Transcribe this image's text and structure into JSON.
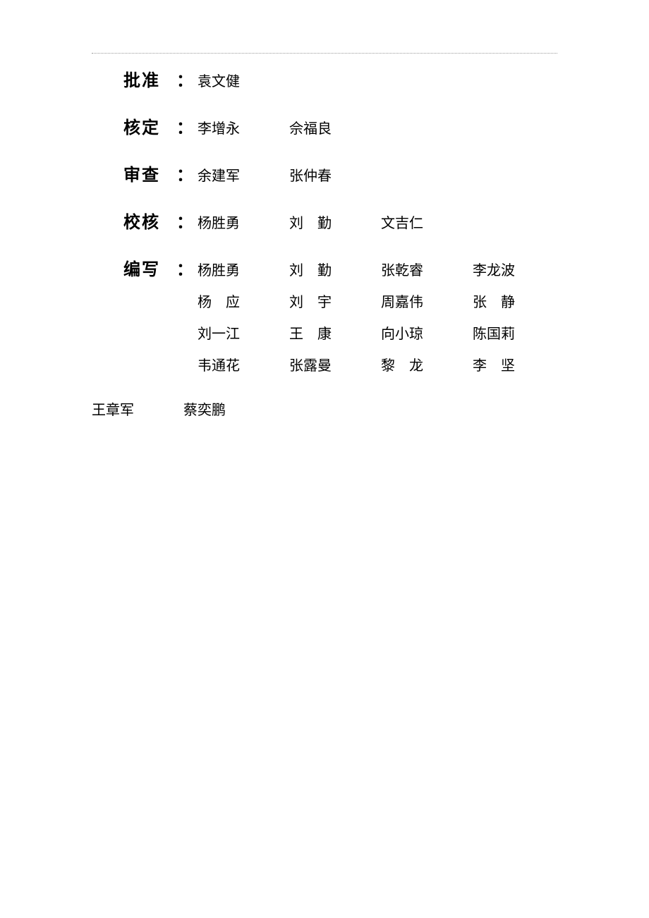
{
  "roles": {
    "approve": {
      "label": "批准",
      "names": [
        "袁文健"
      ]
    },
    "ratify": {
      "label": "核定",
      "names": [
        "李增永",
        "佘福良"
      ]
    },
    "review": {
      "label": "审查",
      "names": [
        "余建军",
        "张仲春"
      ]
    },
    "check": {
      "label": "校核",
      "names": [
        "杨胜勇",
        "刘　勤",
        "文吉仁"
      ]
    },
    "write": {
      "label": "编写",
      "lines": [
        [
          "杨胜勇",
          "刘　勤",
          "张乾睿",
          "李龙波"
        ],
        [
          "杨　应",
          "刘　宇",
          "周嘉伟",
          "张　静"
        ],
        [
          "刘一江",
          "王　康",
          "向小琼",
          "陈国莉"
        ],
        [
          "韦通花",
          "张露曼",
          "黎　龙",
          "李　坚"
        ]
      ],
      "final_line": [
        "王章军",
        "蔡奕鹏"
      ]
    }
  },
  "colon": "：",
  "styling": {
    "background_color": "#ffffff",
    "text_color": "#000000",
    "border_color": "#999999",
    "label_fontsize": 24,
    "name_fontsize": 20,
    "row_spacing": 32,
    "name_width": 130
  }
}
